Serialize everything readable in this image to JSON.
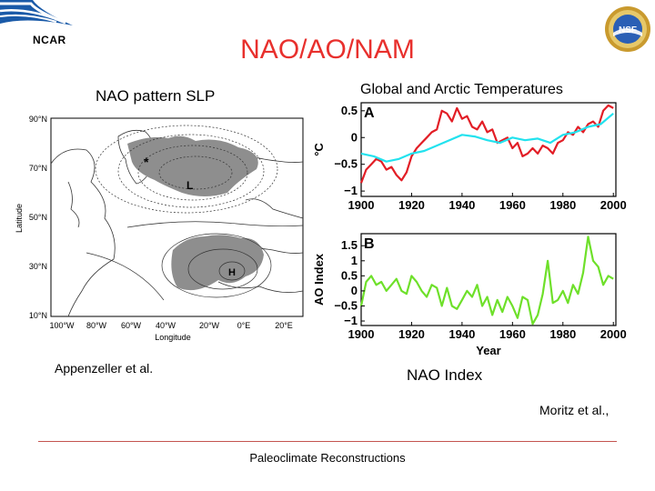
{
  "header": {
    "org_name": "NCAR",
    "title": "NAO/AO/NAM",
    "title_color": "#e8302d",
    "logo_text": "NSF"
  },
  "map": {
    "title": "NAO pattern SLP",
    "ylabel": "Latitude",
    "xlabel": "Longitude",
    "lat_ticks": [
      "90°N",
      "70°N",
      "50°N",
      "30°N",
      "10°N"
    ],
    "lon_ticks": [
      "100°W",
      "80°W",
      "60°W",
      "40°W",
      "20°W",
      "0°E",
      "20°E"
    ],
    "low_label": "L",
    "high_label": "H",
    "star_label": "*",
    "citation": "Appenzeller et al."
  },
  "temp_title": "Global and Arctic Temperatures",
  "nao_index_caption": "NAO Index",
  "right_citation": "Moritz et al.,",
  "footer": {
    "text": "Paleoclimate Reconstructions",
    "line_color": "#c4544f"
  },
  "chart_data": [
    {
      "type": "line",
      "panel_label": "A",
      "ylabel": "°C",
      "xlabel": "",
      "xlim": [
        1900,
        2001
      ],
      "ylim": [
        -1.1,
        0.65
      ],
      "xticks": [
        1900,
        1920,
        1940,
        1960,
        1980,
        2000
      ],
      "yticks": [
        -1,
        -0.5,
        0,
        0.5
      ],
      "ytick_labels": [
        "−1",
        "−0.5",
        "0",
        "0.5"
      ],
      "series": [
        {
          "name": "Arctic",
          "color": "#e21e26",
          "x": [
            1900,
            1902,
            1904,
            1906,
            1908,
            1910,
            1912,
            1914,
            1916,
            1918,
            1920,
            1922,
            1924,
            1926,
            1928,
            1930,
            1932,
            1934,
            1936,
            1938,
            1940,
            1942,
            1944,
            1946,
            1948,
            1950,
            1952,
            1954,
            1956,
            1958,
            1960,
            1962,
            1964,
            1966,
            1968,
            1970,
            1972,
            1974,
            1976,
            1978,
            1980,
            1982,
            1984,
            1986,
            1988,
            1990,
            1992,
            1994,
            1996,
            1998,
            2000
          ],
          "values": [
            -0.85,
            -0.6,
            -0.5,
            -0.4,
            -0.45,
            -0.6,
            -0.55,
            -0.7,
            -0.8,
            -0.65,
            -0.35,
            -0.2,
            -0.1,
            0.0,
            0.1,
            0.15,
            0.5,
            0.45,
            0.3,
            0.55,
            0.35,
            0.4,
            0.2,
            0.15,
            0.3,
            0.1,
            0.15,
            -0.1,
            -0.05,
            0.0,
            -0.2,
            -0.1,
            -0.35,
            -0.3,
            -0.2,
            -0.3,
            -0.15,
            -0.2,
            -0.3,
            -0.1,
            -0.05,
            0.1,
            0.05,
            0.2,
            0.1,
            0.25,
            0.3,
            0.2,
            0.5,
            0.6,
            0.55
          ]
        },
        {
          "name": "Global",
          "color": "#22e2ee",
          "x": [
            1900,
            1905,
            1910,
            1915,
            1920,
            1925,
            1930,
            1935,
            1940,
            1945,
            1950,
            1955,
            1960,
            1965,
            1970,
            1975,
            1980,
            1985,
            1990,
            1995,
            2000
          ],
          "values": [
            -0.3,
            -0.35,
            -0.45,
            -0.4,
            -0.3,
            -0.25,
            -0.15,
            -0.05,
            0.05,
            0.02,
            -0.05,
            -0.1,
            0.0,
            -0.05,
            -0.02,
            -0.1,
            0.05,
            0.1,
            0.2,
            0.25,
            0.45
          ]
        }
      ]
    },
    {
      "type": "line",
      "panel_label": "B",
      "ylabel": "AO Index",
      "xlabel": "Year",
      "xlim": [
        1900,
        2001
      ],
      "ylim": [
        -1.15,
        1.9
      ],
      "xticks": [
        1900,
        1920,
        1940,
        1960,
        1980,
        2000
      ],
      "yticks": [
        -1,
        -0.5,
        0,
        0.5,
        1,
        1.5
      ],
      "ytick_labels": [
        "−1",
        "−0.5",
        "0",
        "0.5",
        "1",
        "1.5"
      ],
      "series": [
        {
          "name": "AO Index",
          "color": "#6ee02a",
          "x": [
            1900,
            1902,
            1904,
            1906,
            1908,
            1910,
            1912,
            1914,
            1916,
            1918,
            1920,
            1922,
            1924,
            1926,
            1928,
            1930,
            1932,
            1934,
            1936,
            1938,
            1940,
            1942,
            1944,
            1946,
            1948,
            1950,
            1952,
            1954,
            1956,
            1958,
            1960,
            1962,
            1964,
            1966,
            1968,
            1970,
            1972,
            1974,
            1976,
            1978,
            1980,
            1982,
            1984,
            1986,
            1988,
            1990,
            1992,
            1994,
            1996,
            1998,
            2000
          ],
          "values": [
            -0.5,
            0.3,
            0.5,
            0.2,
            0.3,
            0.0,
            0.2,
            0.4,
            0.0,
            -0.1,
            0.5,
            0.3,
            0.0,
            -0.2,
            0.2,
            0.1,
            -0.5,
            0.1,
            -0.5,
            -0.6,
            -0.3,
            0.0,
            -0.2,
            0.2,
            -0.5,
            -0.2,
            -0.8,
            -0.3,
            -0.7,
            -0.2,
            -0.5,
            -0.9,
            -0.2,
            -0.3,
            -1.1,
            -0.8,
            -0.1,
            1.0,
            -0.4,
            -0.3,
            0.0,
            -0.4,
            0.2,
            -0.1,
            0.6,
            1.8,
            1.0,
            0.8,
            0.2,
            0.5,
            0.4
          ]
        }
      ]
    }
  ]
}
